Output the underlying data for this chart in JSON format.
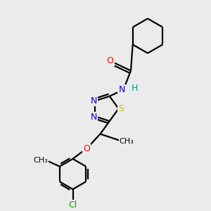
{
  "background_color": "#ebebeb",
  "atom_colors": {
    "C": "#000000",
    "N": "#0000cc",
    "O": "#ff0000",
    "S": "#cccc00",
    "Cl": "#00aa00",
    "H": "#009999"
  },
  "figsize": [
    3.0,
    3.0
  ],
  "dpi": 100
}
